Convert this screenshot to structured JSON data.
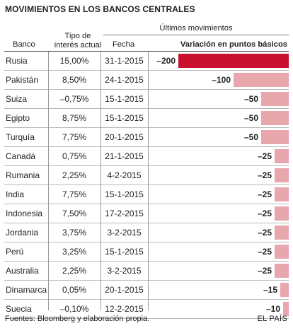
{
  "title": "MOVIMIENTOS EN LOS BANCOS CENTRALES",
  "header": {
    "banco": "Banco",
    "tipo_line1": "Tipo de",
    "tipo_line2": "interés actual",
    "ultimos": "Últimos movimientos",
    "fecha": "Fecha",
    "variacion": "Variación en puntos básicos"
  },
  "colors": {
    "strong": "#c8102e",
    "light": "#e8a7ad"
  },
  "chart_data": {
    "type": "bar",
    "orientation": "horizontal",
    "title": "MOVIMIENTOS EN LOS BANCOS CENTRALES",
    "value_label": "Variación en puntos básicos",
    "xlim": [
      -200,
      0
    ],
    "categories": [
      "Rusia",
      "Pakistán",
      "Suiza",
      "Egipto",
      "Turquía",
      "Canadá",
      "Rumania",
      "India",
      "Indonesia",
      "Jordania",
      "Perú",
      "Australia",
      "Dinamarca",
      "Suecia"
    ],
    "rates": [
      "15,00%",
      "8,50%",
      "–0,75%",
      "8,75%",
      "7,75%",
      "0,75%",
      "2,25%",
      "7,75%",
      "7,50%",
      "3,75%",
      "3,25%",
      "2,25%",
      "0,05%",
      "–0,10%"
    ],
    "dates": [
      "31-1-2015",
      "24-1-2015",
      "15-1-2015",
      "15-1-2015",
      "20-1-2015",
      "21-1-2015",
      "4-2-2015",
      "15-1-2015",
      "17-2-2015",
      "3-2-2015",
      "15-1-2015",
      "3-2-2015",
      "20-1-2015",
      "12-2-2015"
    ],
    "values": [
      -200,
      -100,
      -50,
      -50,
      -50,
      -25,
      -25,
      -25,
      -25,
      -25,
      -25,
      -25,
      -15,
      -10
    ],
    "value_labels": [
      "–200",
      "–100",
      "–50",
      "–50",
      "–50",
      "–25",
      "–25",
      "–25",
      "–25",
      "–25",
      "–25",
      "–25",
      "–15",
      "–10"
    ]
  },
  "footer": {
    "source": "Fuentes: Bloomberg y elaboración propia.",
    "brand": "EL PAÍS"
  }
}
